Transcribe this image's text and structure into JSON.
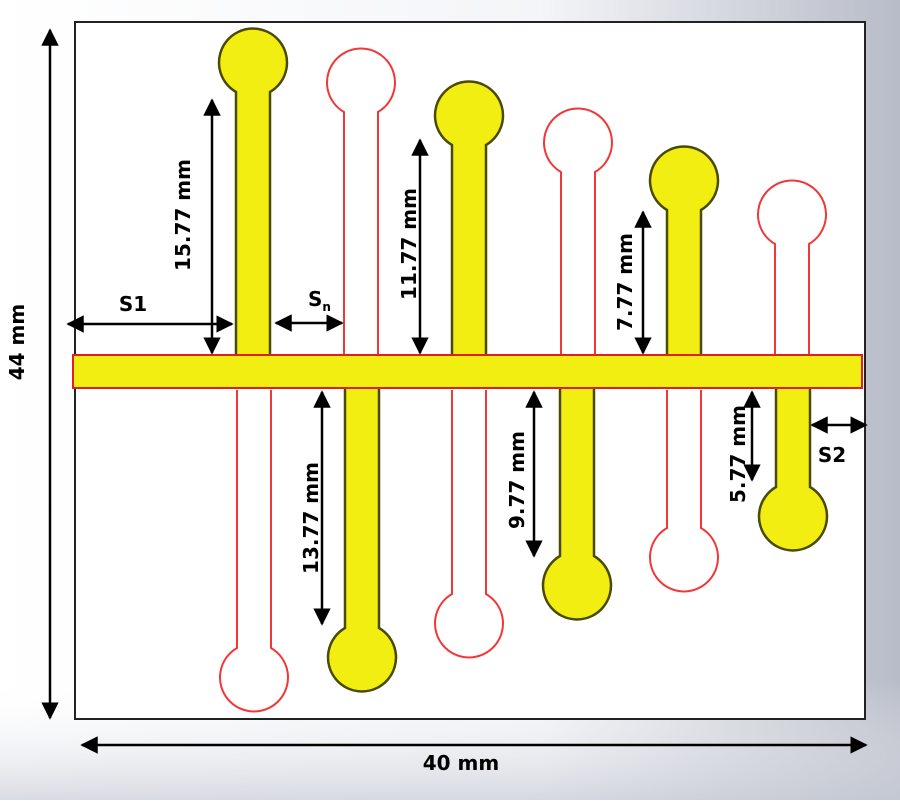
{
  "dimensions": {
    "height_label": "44 mm",
    "width_label": "40 mm"
  },
  "spacings": {
    "s1_label": "S1",
    "sn_label": "S",
    "sn_subscript": "n",
    "s2_label": "S2"
  },
  "arms": [
    {
      "label": "15.77 mm",
      "side": "top",
      "fill": "yellow"
    },
    {
      "label": "13.77 mm",
      "side": "bottom",
      "fill": "yellow"
    },
    {
      "label": "11.77 mm",
      "side": "top",
      "fill": "yellow"
    },
    {
      "label": "9.77 mm",
      "side": "bottom",
      "fill": "yellow"
    },
    {
      "label": "7.77 mm",
      "side": "top",
      "fill": "yellow"
    },
    {
      "label": "5.77 mm",
      "side": "bottom",
      "fill": "yellow"
    }
  ],
  "colors": {
    "conductor_fill": "#f2ee12",
    "conductor_outline": "#5a5a00",
    "slot_outline": "#f03838",
    "feedline_outline": "#e02020",
    "board_background": "#ffffff",
    "page_gradient_edge": "#b8bcc8",
    "dimension_line": "#000000"
  }
}
